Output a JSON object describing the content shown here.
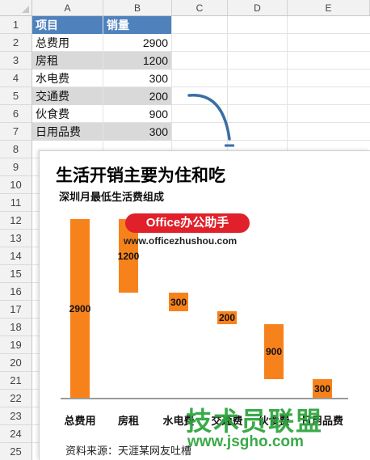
{
  "spreadsheet": {
    "columns": [
      "A",
      "B",
      "C",
      "D",
      "E"
    ],
    "rows": [
      "1",
      "2",
      "3",
      "4",
      "5",
      "6",
      "7",
      "8",
      "9",
      "10",
      "11",
      "12",
      "13",
      "14",
      "15",
      "16",
      "17",
      "18",
      "19",
      "20",
      "21",
      "22",
      "23",
      "24",
      "25"
    ],
    "table": {
      "headers": [
        "项目",
        "销量"
      ],
      "data": [
        {
          "item": "总费用",
          "value": "2900"
        },
        {
          "item": "房租",
          "value": "1200"
        },
        {
          "item": "水电费",
          "value": "300"
        },
        {
          "item": "交通费",
          "value": "200"
        },
        {
          "item": "伙食费",
          "value": "900"
        },
        {
          "item": "日用品费",
          "value": "300"
        }
      ]
    }
  },
  "chart": {
    "title": "生活开销主要为住和吃",
    "subtitle": "深圳月最低生活费组成",
    "source": "资料来源：天涯某网友吐槽",
    "watermark_badge": "Office办公助手",
    "watermark_url": "www.officezhushou.com",
    "bar_color": "#f7821b"
  },
  "chart_data": {
    "type": "bar",
    "subtype": "waterfall",
    "title": "生活开销主要为住和吃",
    "subtitle": "深圳月最低生活费组成",
    "categories": [
      "总费用",
      "房租",
      "水电费",
      "交通费",
      "伙食费",
      "日用品费"
    ],
    "values": [
      2900,
      1200,
      300,
      200,
      900,
      300
    ],
    "data_labels": [
      "2900",
      "1200",
      "300",
      "200",
      "900",
      "300"
    ],
    "ylim": [
      0,
      2900
    ],
    "grid": false,
    "legend": "none"
  },
  "overlay_watermark": {
    "text": "技术员联盟",
    "url": "www.jsgho.com",
    "color": "#2aa33a"
  }
}
